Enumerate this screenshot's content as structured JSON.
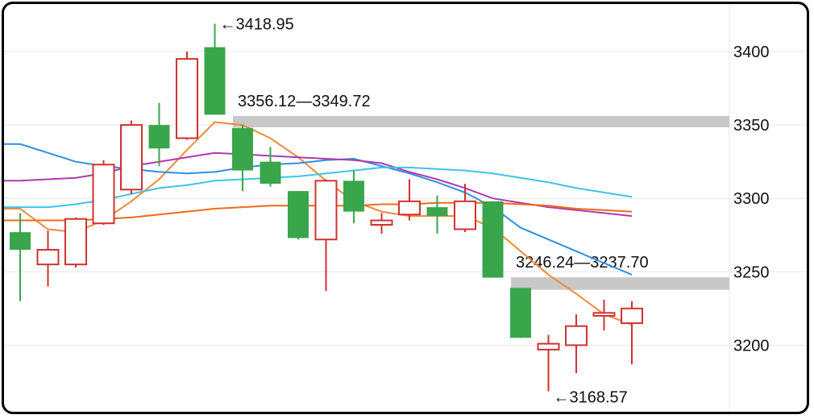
{
  "chart_data": {
    "type": "candlestick",
    "y_axis": {
      "range": [
        3155,
        3432
      ],
      "ticks": [
        "3400",
        "3350",
        "3300",
        "3250",
        "3200"
      ],
      "tick_values": [
        3400,
        3350,
        3300,
        3250,
        3200
      ],
      "position": "right"
    },
    "colors": {
      "up": "#d03232",
      "down": "#3aa64c",
      "grid": "#e6e6e6",
      "gap_zone": "#c8c8c8",
      "ma": [
        "#f08a3c",
        "#2e8fe6",
        "#b03ab0",
        "#3ec3ea",
        "#f06a1a"
      ]
    },
    "candles": [
      {
        "open": 3277,
        "close": 3265,
        "high": 3290,
        "low": 3230
      },
      {
        "open": 3255,
        "close": 3265,
        "high": 3278,
        "low": 3240
      },
      {
        "open": 3255,
        "close": 3286,
        "high": 3287,
        "low": 3253
      },
      {
        "open": 3283,
        "close": 3323,
        "high": 3326,
        "low": 3282
      },
      {
        "open": 3306,
        "close": 3350,
        "high": 3353,
        "low": 3303
      },
      {
        "open": 3350,
        "close": 3334,
        "high": 3365,
        "low": 3322
      },
      {
        "open": 3341,
        "close": 3395,
        "high": 3400,
        "low": 3340
      },
      {
        "open": 3403,
        "close": 3357,
        "high": 3418.95,
        "low": 3357
      },
      {
        "open": 3348,
        "close": 3319,
        "high": 3350,
        "low": 3305
      },
      {
        "open": 3325,
        "close": 3310,
        "high": 3335,
        "low": 3308
      },
      {
        "open": 3305,
        "close": 3273,
        "high": 3305,
        "low": 3272
      },
      {
        "open": 3272,
        "close": 3312,
        "high": 3313,
        "low": 3237
      },
      {
        "open": 3312,
        "close": 3291,
        "high": 3319,
        "low": 3283
      },
      {
        "open": 3282,
        "close": 3285,
        "high": 3290,
        "low": 3276
      },
      {
        "open": 3289,
        "close": 3298,
        "high": 3313,
        "low": 3285
      },
      {
        "open": 3294,
        "close": 3288,
        "high": 3302,
        "low": 3276
      },
      {
        "open": 3279,
        "close": 3298,
        "high": 3310,
        "low": 3277
      },
      {
        "open": 3298,
        "close": 3246,
        "high": 3298,
        "low": 3246
      },
      {
        "open": 3239,
        "close": 3205,
        "high": 3239,
        "low": 3205
      },
      {
        "open": 3197,
        "close": 3201,
        "high": 3207,
        "low": 3168.57
      },
      {
        "open": 3200,
        "close": 3213,
        "high": 3221,
        "low": 3181
      },
      {
        "open": 3220,
        "close": 3222,
        "high": 3231,
        "low": 3210
      },
      {
        "open": 3215,
        "close": 3225,
        "high": 3230,
        "low": 3187
      }
    ],
    "moving_averages": [
      {
        "values": [
          3293,
          3279,
          3277,
          3285,
          3298,
          3313,
          3333,
          3352,
          3350,
          3341,
          3328,
          3312,
          3298,
          3291,
          3288,
          3288,
          3288,
          3280,
          3264,
          3248,
          3235,
          3221,
          3214
        ]
      },
      {
        "values": [
          3337,
          3331,
          3325,
          3322,
          3320,
          3318,
          3317,
          3318,
          3321,
          3323,
          3324,
          3326,
          3327,
          3322,
          3317,
          3311,
          3304,
          3294,
          3280,
          3272,
          3264,
          3256,
          3248
        ]
      },
      {
        "values": [
          3312,
          3313,
          3314,
          3317,
          3322,
          3325,
          3328,
          3331,
          3330,
          3329,
          3328,
          3327,
          3326,
          3324,
          3318,
          3313,
          3307,
          3300,
          3297,
          3294,
          3292,
          3290,
          3288
        ]
      },
      {
        "values": [
          3294,
          3294,
          3296,
          3299,
          3303,
          3307,
          3309,
          3312,
          3313,
          3314,
          3315,
          3317,
          3319,
          3321,
          3321,
          3320,
          3319,
          3317,
          3314,
          3311,
          3307,
          3304,
          3301
        ]
      },
      {
        "values": [
          3285,
          3285,
          3285,
          3286,
          3287,
          3289,
          3291,
          3293,
          3294,
          3295,
          3295,
          3295,
          3295,
          3296,
          3296,
          3297,
          3297,
          3297,
          3296,
          3295,
          3293,
          3292,
          3291
        ]
      }
    ],
    "gap_zones": [
      {
        "high": 3356.12,
        "low": 3349.72,
        "start_index": 8,
        "label": "3356.12—3349.72"
      },
      {
        "high": 3246.24,
        "low": 3237.7,
        "start_index": 18,
        "label": "3246.24—3237.70"
      }
    ],
    "annotations": [
      {
        "text": "←3418.95",
        "index": 7,
        "value": 3418.95,
        "anchor": "high"
      },
      {
        "text": "←3168.57",
        "index": 19,
        "value": 3168.57,
        "anchor": "low"
      }
    ],
    "grid": true
  }
}
